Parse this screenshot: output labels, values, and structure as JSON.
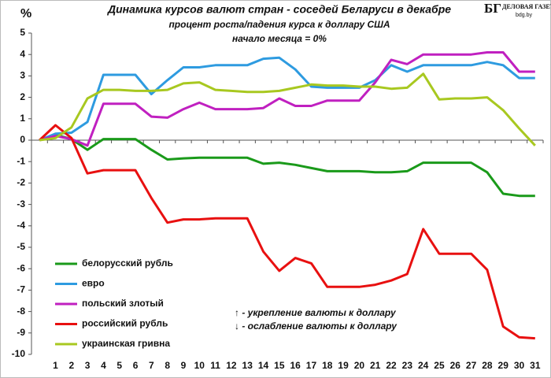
{
  "chart_data": {
    "type": "line",
    "title": "Динамика курсов валют стран - соседей Беларуси в декабре",
    "subtitle": "процент роста/падения  курса к доллару США",
    "subtitle2": "начало месяца = 0%",
    "y_label": "%",
    "logo": "БГ",
    "logo_name": "ДЕЛОВАЯ ГАЗЕТА",
    "logo_site": "bdg.by",
    "annotations": [
      "↑ - укрепление валюты к доллару",
      "↓ - ослабление валюты к доллару"
    ],
    "categories": [
      null,
      "1",
      "2",
      "3",
      "4",
      "5",
      "6",
      "7",
      "8",
      "9",
      "10",
      "11",
      "12",
      "13",
      "14",
      "15",
      "16",
      "17",
      "18",
      "19",
      "20",
      "21",
      "22",
      "23",
      "24",
      "25",
      "26",
      "27",
      "28",
      "29",
      "30",
      "31"
    ],
    "series": [
      {
        "name": "белорусский  рубль",
        "color": "#1a9a1a",
        "values": [
          0,
          0.25,
          0.05,
          -0.45,
          0.05,
          0.05,
          0.05,
          -0.45,
          -0.9,
          -0.85,
          -0.82,
          -0.82,
          -0.82,
          -0.82,
          -1.1,
          -1.05,
          -1.15,
          -1.3,
          -1.45,
          -1.45,
          -1.45,
          -1.5,
          -1.5,
          -1.45,
          -1.05,
          -1.05,
          -1.05,
          -1.05,
          -1.5,
          -2.5,
          -2.6,
          -2.6
        ]
      },
      {
        "name": "евро",
        "color": "#2e9be0",
        "values": [
          0,
          0.3,
          0.35,
          0.85,
          3.05,
          3.05,
          3.05,
          2.15,
          2.8,
          3.4,
          3.4,
          3.5,
          3.5,
          3.5,
          3.8,
          3.85,
          3.3,
          2.5,
          2.45,
          2.45,
          2.45,
          2.8,
          3.5,
          3.2,
          3.5,
          3.5,
          3.5,
          3.5,
          3.65,
          3.5,
          2.9,
          2.9
        ]
      },
      {
        "name": "польский  злотый",
        "color": "#c020c0",
        "values": [
          0,
          0.2,
          0.05,
          -0.25,
          1.7,
          1.7,
          1.7,
          1.1,
          1.05,
          1.45,
          1.75,
          1.45,
          1.45,
          1.45,
          1.5,
          1.95,
          1.6,
          1.6,
          1.85,
          1.85,
          1.85,
          2.7,
          3.75,
          3.55,
          4.0,
          4.0,
          4.0,
          4.0,
          4.1,
          4.1,
          3.2,
          3.2
        ]
      },
      {
        "name": "российский  рубль",
        "color": "#e81010",
        "values": [
          0,
          0.7,
          0.1,
          -1.55,
          -1.4,
          -1.4,
          -1.4,
          -2.7,
          -3.85,
          -3.7,
          -3.7,
          -3.65,
          -3.65,
          -3.65,
          -5.2,
          -6.1,
          -5.5,
          -5.75,
          -6.85,
          -6.85,
          -6.85,
          -6.75,
          -6.55,
          -6.25,
          -4.15,
          -5.3,
          -5.3,
          -5.3,
          -6.05,
          -8.7,
          -9.2,
          -9.25
        ]
      },
      {
        "name": "украинская  гривна",
        "color": "#a8c820",
        "values": [
          0,
          0.1,
          0.6,
          1.95,
          2.35,
          2.35,
          2.3,
          2.3,
          2.35,
          2.65,
          2.7,
          2.35,
          2.3,
          2.25,
          2.25,
          2.3,
          2.45,
          2.6,
          2.55,
          2.55,
          2.5,
          2.5,
          2.4,
          2.45,
          3.1,
          1.9,
          1.95,
          1.95,
          2.0,
          1.4,
          0.55,
          -0.25
        ]
      }
    ],
    "ylim": [
      -10,
      5
    ],
    "yticks": [
      -10,
      -9,
      -8,
      -7,
      -6,
      -5,
      -4,
      -3,
      -2,
      -1,
      0,
      1,
      2,
      3,
      4,
      5
    ],
    "grid": false
  }
}
